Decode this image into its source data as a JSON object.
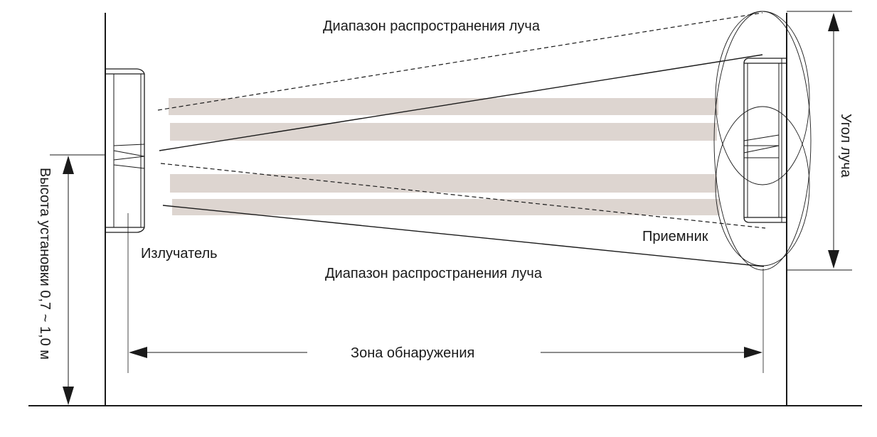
{
  "labels": {
    "beam_range_top": "Диапазон распространения луча",
    "beam_range_bottom": "Диапазон распространения луча",
    "emitter": "Излучатель",
    "receiver": "Приемник",
    "detection_zone": "Зона обнаружения",
    "beam_angle": "Угол луча",
    "mount_height": "Высота установки 0,7 ~ 1,0 м"
  },
  "colors": {
    "line": "#1a1a1a",
    "beam": "#ddd5d0",
    "background": "#ffffff"
  }
}
